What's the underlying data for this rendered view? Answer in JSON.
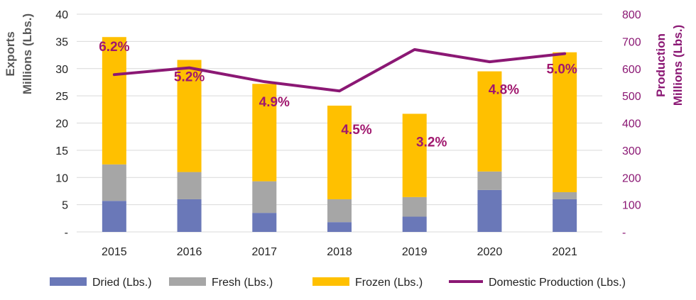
{
  "chart_data": {
    "type": "bar",
    "stacked": true,
    "categories": [
      "2015",
      "2016",
      "2017",
      "2018",
      "2019",
      "2020",
      "2021"
    ],
    "series": [
      {
        "name": "Dried (Lbs.)",
        "values": [
          5.7,
          6.0,
          3.5,
          1.8,
          2.8,
          7.7,
          6.0
        ],
        "color": "#6a78b8",
        "axis": "left"
      },
      {
        "name": "Fresh (Lbs.)",
        "values": [
          6.7,
          5.0,
          5.8,
          4.2,
          3.6,
          3.4,
          1.3
        ],
        "color": "#a6a6a6",
        "axis": "left"
      },
      {
        "name": "Frozen (Lbs.)",
        "values": [
          23.4,
          20.6,
          17.9,
          17.2,
          15.3,
          18.4,
          25.7
        ],
        "color": "#ffc000",
        "axis": "left"
      }
    ],
    "line_series": {
      "name": "Domestic Production (Lbs.)",
      "values": [
        578,
        603,
        552,
        518,
        670,
        625,
        655
      ],
      "color": "#8b1874",
      "axis": "right"
    },
    "annotations": [
      "6.2%",
      "5.2%",
      "4.9%",
      "4.5%",
      "3.2%",
      "4.8%",
      "5.0%"
    ],
    "annotation_color": "#a0176e",
    "y_left": {
      "label_line1": "Exports",
      "label_line2": "Millions (Lbs.)",
      "ylim": [
        0,
        40
      ],
      "ticks": [
        "-",
        "5",
        "10",
        "15",
        "20",
        "25",
        "30",
        "35",
        "40"
      ],
      "color": "#595959"
    },
    "y_right": {
      "label_line1": "Production",
      "label_line2": "Millions (Lbs.)",
      "ylim": [
        0,
        800
      ],
      "ticks": [
        "-",
        "100",
        "200",
        "300",
        "400",
        "500",
        "600",
        "700",
        "800"
      ],
      "color": "#8b1874"
    },
    "grid": true,
    "legend_position": "bottom"
  }
}
